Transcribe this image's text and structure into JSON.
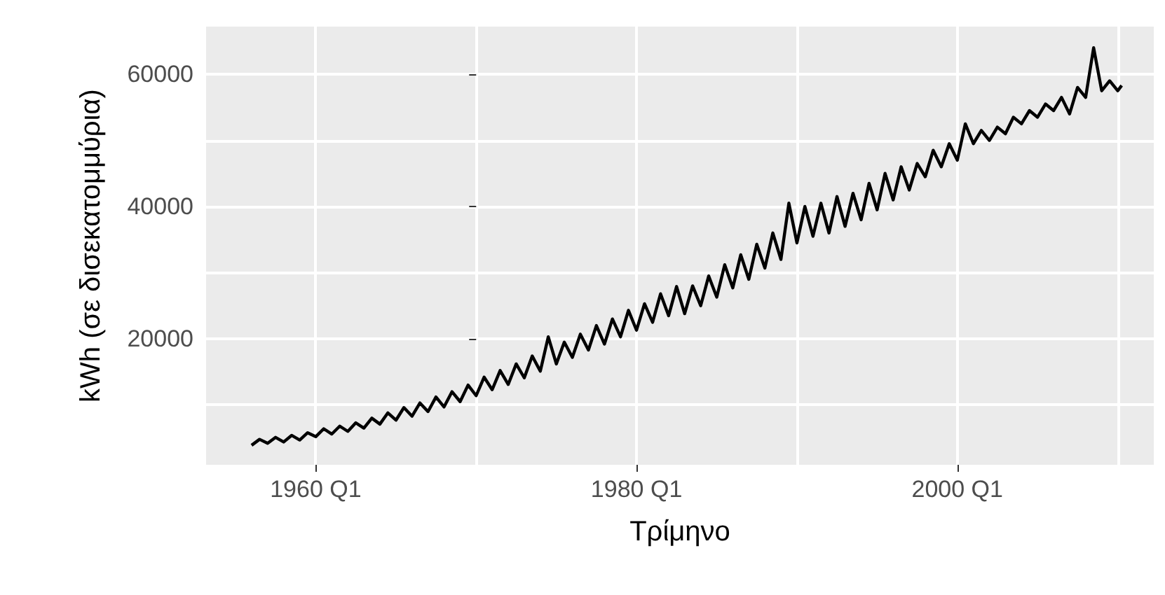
{
  "chart_data": {
    "type": "line",
    "xlabel": "Τρίμηνο",
    "ylabel": "kWh (σε δισεκατομμύρια)",
    "x": [
      "1956-01",
      "1956-07",
      "1957-01",
      "1957-07",
      "1958-01",
      "1958-07",
      "1959-01",
      "1959-07",
      "1960-01",
      "1960-07",
      "1961-01",
      "1961-07",
      "1962-01",
      "1962-07",
      "1963-01",
      "1963-07",
      "1964-01",
      "1964-07",
      "1965-01",
      "1965-07",
      "1966-01",
      "1966-07",
      "1967-01",
      "1967-07",
      "1968-01",
      "1968-07",
      "1969-01",
      "1969-07",
      "1970-01",
      "1970-07",
      "1971-01",
      "1971-07",
      "1972-01",
      "1972-07",
      "1973-01",
      "1973-07",
      "1974-01",
      "1974-07",
      "1975-01",
      "1975-07",
      "1976-01",
      "1976-07",
      "1977-01",
      "1977-07",
      "1978-01",
      "1978-07",
      "1979-01",
      "1979-07",
      "1980-01",
      "1980-07",
      "1981-01",
      "1981-07",
      "1982-01",
      "1982-07",
      "1983-01",
      "1983-07",
      "1984-01",
      "1984-07",
      "1985-01",
      "1985-07",
      "1986-01",
      "1986-07",
      "1987-01",
      "1987-07",
      "1988-01",
      "1988-07",
      "1989-01",
      "1989-07",
      "1990-01",
      "1990-07",
      "1991-01",
      "1991-07",
      "1992-01",
      "1992-07",
      "1993-01",
      "1993-07",
      "1994-01",
      "1994-07",
      "1995-01",
      "1995-07",
      "1996-01",
      "1996-07",
      "1997-01",
      "1997-07",
      "1998-01",
      "1998-07",
      "1999-01",
      "1999-07",
      "2000-01",
      "2000-07",
      "2001-01",
      "2001-07",
      "2002-01",
      "2002-07",
      "2003-01",
      "2003-07",
      "2004-01",
      "2004-07",
      "2005-01",
      "2005-07",
      "2006-01",
      "2006-07",
      "2007-01",
      "2007-07",
      "2008-01",
      "2008-07",
      "2009-01",
      "2009-07",
      "2010-01",
      "2010-04"
    ],
    "series": [
      {
        "color": "#000000",
        "values": [
          3900,
          4800,
          4200,
          5100,
          4400,
          5400,
          4700,
          5800,
          5200,
          6400,
          5600,
          6800,
          6000,
          7300,
          6500,
          8000,
          7100,
          8800,
          7700,
          9600,
          8300,
          10300,
          9000,
          11200,
          9700,
          12000,
          10500,
          13000,
          11400,
          14200,
          12300,
          15200,
          13100,
          16200,
          14100,
          17400,
          15100,
          20300,
          16200,
          19500,
          17200,
          20700,
          18300,
          22000,
          19200,
          23000,
          20300,
          24300,
          21300,
          25300,
          22500,
          26800,
          23500,
          27900,
          23800,
          28000,
          25000,
          29500,
          26300,
          31200,
          27700,
          32700,
          29000,
          34300,
          30700,
          36000,
          32000,
          40500,
          34500,
          40000,
          35500,
          40500,
          36000,
          41500,
          37000,
          42000,
          38000,
          43500,
          39500,
          45000,
          41000,
          46000,
          42500,
          46500,
          44500,
          48500,
          46000,
          49500,
          47000,
          52500,
          49500,
          51500,
          50000,
          52000,
          51000,
          53500,
          52500,
          54500,
          53500,
          55500,
          54500,
          56500,
          54000,
          58000,
          56500,
          64000,
          57500,
          59000,
          57500,
          58300
        ]
      }
    ],
    "xlim": [
      "1953-03",
      "2012-04"
    ],
    "xticks": [
      {
        "value": "1960-01",
        "label": "1960 Q1"
      },
      {
        "value": "1970-01",
        "label": null
      },
      {
        "value": "1980-01",
        "label": "1980 Q1"
      },
      {
        "value": "1990-01",
        "label": null
      },
      {
        "value": "2000-01",
        "label": "2000 Q1"
      },
      {
        "value": "2010-01",
        "label": null
      }
    ],
    "ylim": [
      950,
      67200
    ],
    "yticks": [
      {
        "value": 10000,
        "label": null
      },
      20000,
      {
        "value": 30000,
        "label": null
      },
      40000,
      {
        "value": 50000,
        "label": null
      },
      60000
    ],
    "grid": true,
    "marker": "none",
    "line_style": "solid"
  }
}
